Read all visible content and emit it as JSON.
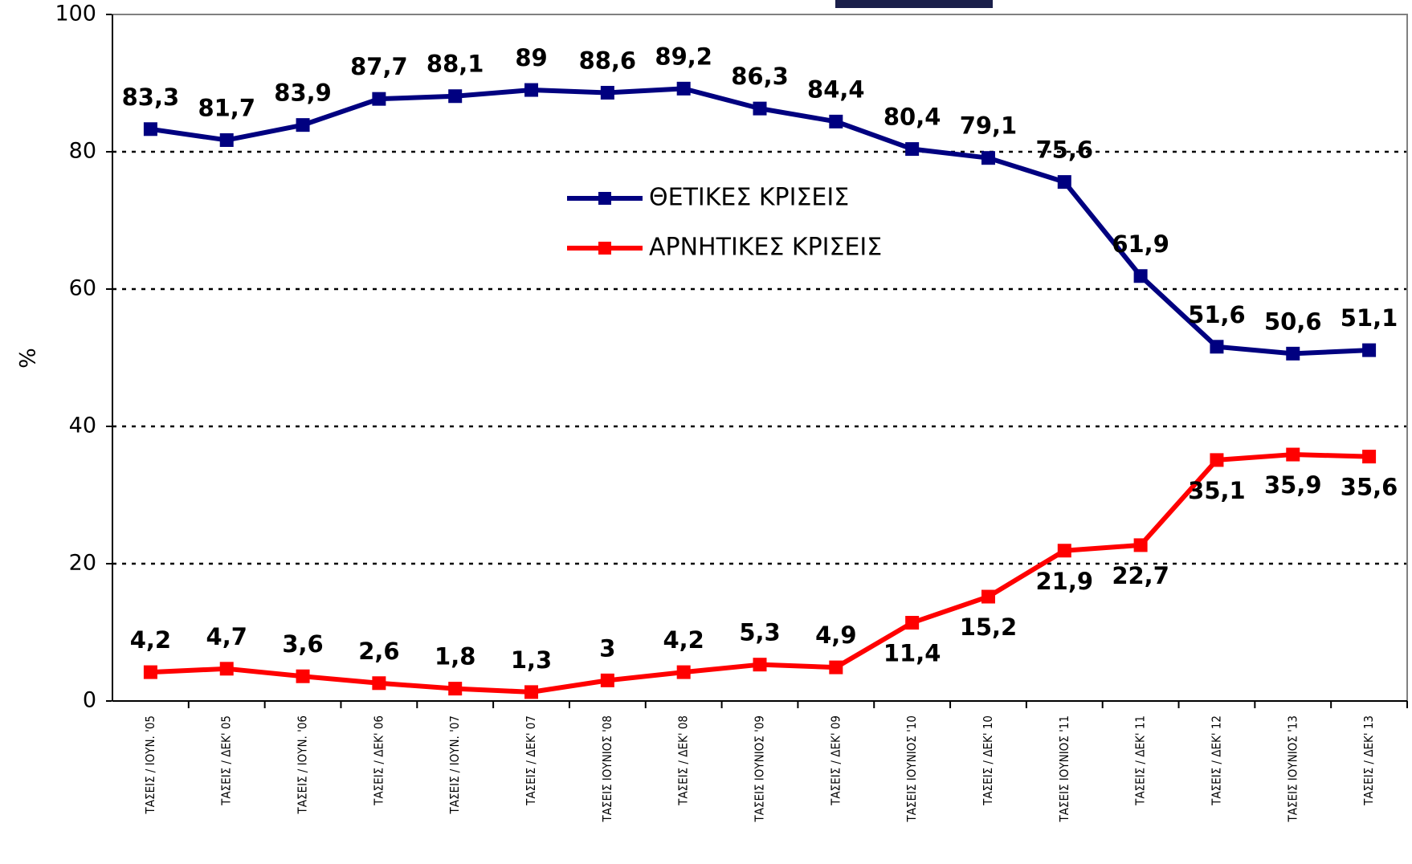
{
  "chart_data": {
    "type": "line",
    "y_label": "%",
    "categories": [
      "ΤΑΣΕΙΣ / ΙΟΥΝ. '05",
      "ΤΑΣΕΙΣ / ΔΕΚ' 05",
      "ΤΑΣΕΙΣ / ΙΟΥΝ. '06",
      "ΤΑΣΕΙΣ / ΔΕΚ' 06",
      "ΤΑΣΕΙΣ / ΙΟΥΝ. '07",
      "ΤΑΣΕΙΣ / ΔΕΚ' 07",
      "ΤΑΣΕΙΣ ΙΟΥΝΙΟΣ '08",
      "ΤΑΣΕΙΣ / ΔΕΚ' 08",
      "ΤΑΣΕΙΣ ΙΟΥΝΙΟΣ '09",
      "ΤΑΣΕΙΣ / ΔΕΚ' 09",
      "ΤΑΣΕΙΣ ΙΟΥΝΙΟΣ '10",
      "ΤΑΣΕΙΣ / ΔΕΚ' 10",
      "ΤΑΣΕΙΣ ΙΟΥΝΙΟΣ '11",
      "ΤΑΣΕΙΣ / ΔΕΚ' 11",
      "ΤΑΣΕΙΣ / ΔΕΚ' 12",
      "ΤΑΣΕΙΣ ΙΟΥΝΙΟΣ '13",
      "ΤΑΣΕΙΣ / ΔΕΚ' 13"
    ],
    "series": [
      {
        "name": "ΘΕΤΙΚΕΣ ΚΡΙΣΕΙΣ",
        "color": "#000080",
        "values": [
          83.3,
          81.7,
          83.9,
          87.7,
          88.1,
          89,
          88.6,
          89.2,
          86.3,
          84.4,
          80.4,
          79.1,
          75.6,
          61.9,
          51.6,
          50.6,
          51.1
        ],
        "value_labels": [
          "83,3",
          "81,7",
          "83,9",
          "87,7",
          "88,1",
          "89",
          "88,6",
          "89,2",
          "86,3",
          "84,4",
          "80,4",
          "79,1",
          "75,6",
          "61,9",
          "51,6",
          "50,6",
          "51,1"
        ]
      },
      {
        "name": "ΑΡΝΗΤΙΚΕΣ ΚΡΙΣΕΙΣ",
        "color": "#ff0000",
        "values": [
          4.2,
          4.7,
          3.6,
          2.6,
          1.8,
          1.3,
          3,
          4.2,
          5.3,
          4.9,
          11.4,
          15.2,
          21.9,
          22.7,
          35.1,
          35.9,
          35.6
        ],
        "value_labels": [
          "4,2",
          "4,7",
          "3,6",
          "2,6",
          "1,8",
          "1,3",
          "3",
          "4,2",
          "5,3",
          "4,9",
          "11,4",
          "15,2",
          "21,9",
          "22,7",
          "35,1",
          "35,9",
          "35,6"
        ]
      }
    ],
    "ylim": [
      0,
      100
    ],
    "yticks": [
      0,
      20,
      40,
      60,
      80,
      100
    ],
    "grid": true
  }
}
